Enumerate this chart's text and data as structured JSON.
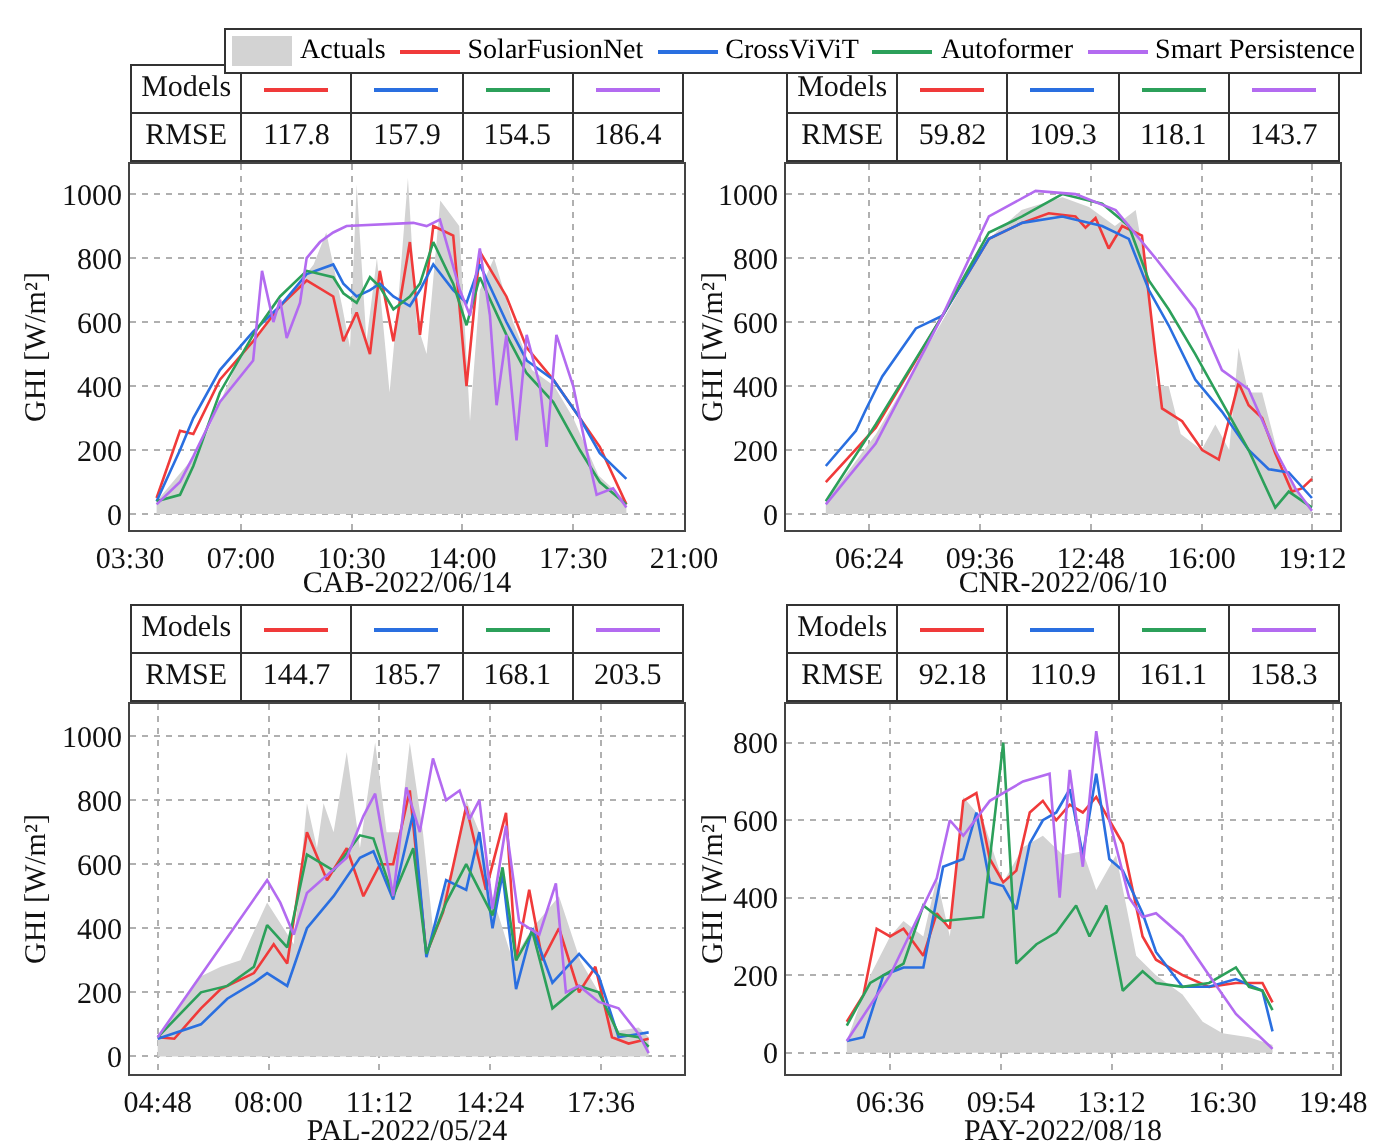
{
  "chart_data": [
    {
      "type": "line",
      "xlabel": "CAB-2022/06/14",
      "ylabel": "GHI [W/m²]",
      "xlim": [
        3.5,
        21
      ],
      "ylim": [
        -50,
        1094
      ],
      "xticks": [
        {
          "value": 3.5,
          "label": "03:30"
        },
        {
          "value": 7,
          "label": "07:00"
        },
        {
          "value": 10.5,
          "label": "10:30"
        },
        {
          "value": 14,
          "label": "14:00"
        },
        {
          "value": 17.5,
          "label": "17:30"
        },
        {
          "value": 21,
          "label": "21:00"
        }
      ],
      "yticks": [
        0,
        200,
        400,
        600,
        800,
        1000
      ],
      "grid": true,
      "legend": "top",
      "line_style": "solid",
      "annotations": [
        "Models",
        "RMSE",
        "117.8",
        "157.9",
        "154.5",
        "186.4"
      ],
      "series": [
        {
          "name": "Actuals",
          "type": "area",
          "color": "#d3d3d3",
          "x": [
            4.34,
            5.7,
            7.0,
            8.2,
            9.3,
            9.7,
            10.2,
            10.45,
            10.66,
            10.97,
            11.3,
            11.7,
            12.0,
            12.28,
            12.55,
            12.87,
            13.3,
            13.9,
            14.24,
            14.55,
            15.0,
            15.6,
            16.2,
            16.9,
            17.5,
            18.3,
            19.18
          ],
          "values": [
            40,
            200,
            500,
            640,
            780,
            880,
            650,
            520,
            1030,
            540,
            800,
            380,
            700,
            1050,
            600,
            500,
            980,
            900,
            290,
            700,
            800,
            600,
            450,
            400,
            300,
            120,
            40
          ]
        },
        {
          "name": "SolarFusionNet",
          "color": "#f03a3a",
          "x": [
            4.34,
            5.08,
            5.5,
            6.34,
            7.39,
            8.24,
            9.08,
            9.92,
            10.24,
            10.66,
            11.08,
            11.39,
            11.82,
            12.34,
            12.66,
            13.08,
            13.71,
            14.13,
            14.55,
            15.39,
            16.03,
            16.87,
            17.71,
            18.34,
            19.18
          ],
          "values": [
            50,
            260,
            250,
            420,
            540,
            650,
            730,
            680,
            540,
            630,
            500,
            760,
            540,
            850,
            560,
            900,
            870,
            400,
            820,
            680,
            520,
            420,
            300,
            210,
            30
          ]
        },
        {
          "name": "CrossViViT",
          "color": "#2a6fe0",
          "x": [
            4.34,
            5.08,
            5.5,
            6.34,
            7.39,
            8.24,
            9.08,
            9.92,
            10.24,
            10.66,
            11.08,
            11.39,
            11.82,
            12.34,
            12.66,
            13.08,
            13.71,
            14.13,
            14.55,
            15.39,
            16.03,
            16.87,
            17.71,
            18.34,
            19.18
          ],
          "values": [
            40,
            200,
            300,
            450,
            570,
            650,
            750,
            780,
            720,
            680,
            700,
            720,
            680,
            650,
            700,
            780,
            700,
            660,
            780,
            600,
            480,
            420,
            300,
            190,
            110
          ]
        },
        {
          "name": "Autoformer",
          "color": "#2ca05a",
          "x": [
            4.34,
            5.08,
            5.5,
            6.34,
            7.39,
            8.24,
            9.08,
            9.92,
            10.24,
            10.66,
            11.08,
            11.39,
            11.82,
            12.34,
            12.66,
            13.08,
            13.71,
            14.13,
            14.55,
            15.39,
            16.03,
            16.87,
            17.71,
            18.34,
            19.18
          ],
          "values": [
            40,
            60,
            150,
            380,
            560,
            680,
            760,
            740,
            690,
            660,
            740,
            710,
            640,
            680,
            720,
            850,
            720,
            590,
            740,
            560,
            440,
            350,
            200,
            100,
            30
          ]
        },
        {
          "name": "Smart Persistence",
          "color": "#b36bf0",
          "x": [
            4.34,
            5.08,
            5.5,
            6.34,
            7.39,
            7.67,
            8.03,
            8.24,
            8.45,
            8.87,
            9.08,
            9.5,
            9.92,
            10.34,
            12.45,
            12.87,
            13.29,
            13.92,
            14.24,
            14.55,
            14.87,
            15.08,
            15.39,
            15.71,
            16.03,
            16.45,
            16.66,
            16.97,
            17.5,
            17.92,
            18.24,
            18.76,
            19.18
          ],
          "values": [
            30,
            100,
            180,
            350,
            480,
            760,
            600,
            670,
            550,
            660,
            800,
            850,
            880,
            900,
            910,
            900,
            920,
            700,
            620,
            830,
            620,
            340,
            560,
            230,
            560,
            400,
            210,
            560,
            400,
            200,
            60,
            80,
            20
          ]
        }
      ]
    },
    {
      "type": "line",
      "xlabel": "CNR-2022/06/10",
      "ylabel": "GHI [W/m²]",
      "xlim": [
        4,
        20
      ],
      "ylim": [
        -50,
        1094
      ],
      "xticks": [
        {
          "value": 6.4,
          "label": "06:24"
        },
        {
          "value": 9.6,
          "label": "09:36"
        },
        {
          "value": 12.8,
          "label": "12:48"
        },
        {
          "value": 16,
          "label": "16:00"
        },
        {
          "value": 19.2,
          "label": "19:12"
        }
      ],
      "yticks": [
        0,
        200,
        400,
        600,
        800,
        1000
      ],
      "grid": true,
      "line_style": "solid",
      "annotations": [
        "Models",
        "RMSE",
        "59.82",
        "109.3",
        "118.1",
        "143.7"
      ],
      "series": [
        {
          "type": "area",
          "color": "#d3d3d3",
          "x": [
            5.15,
            6.6,
            8.5,
            9.86,
            10.8,
            11.98,
            12.75,
            13.5,
            14.1,
            14.5,
            14.7,
            15.05,
            15.4,
            16.0,
            16.4,
            16.8,
            17.07,
            17.35,
            17.75,
            18.3,
            18.7,
            19.19
          ],
          "values": [
            40,
            250,
            600,
            860,
            950,
            990,
            960,
            900,
            950,
            700,
            400,
            400,
            250,
            200,
            280,
            200,
            520,
            380,
            380,
            150,
            80,
            20
          ]
        },
        {
          "color": "#f03a3a",
          "x": [
            5.15,
            6.59,
            8.52,
            9.86,
            10.82,
            11.59,
            12.36,
            12.65,
            12.94,
            13.32,
            13.71,
            14.28,
            14.67,
            14.86,
            15.44,
            16.02,
            16.5,
            17.07,
            17.36,
            17.75,
            18.13,
            18.61,
            18.9,
            19.19
          ],
          "values": [
            100,
            270,
            620,
            860,
            910,
            940,
            930,
            895,
            925,
            830,
            900,
            870,
            500,
            330,
            290,
            200,
            170,
            410,
            340,
            300,
            190,
            70,
            80,
            110
          ]
        },
        {
          "color": "#2a6fe0",
          "x": [
            5.15,
            6.02,
            6.3,
            6.78,
            7.75,
            8.52,
            9.86,
            10.82,
            11.98,
            13.13,
            13.9,
            14.48,
            15.05,
            15.82,
            16.59,
            17.36,
            17.94,
            18.52,
            19.19
          ],
          "values": [
            150,
            260,
            325,
            430,
            580,
            620,
            860,
            910,
            930,
            900,
            860,
            700,
            590,
            420,
            320,
            200,
            140,
            130,
            50
          ]
        },
        {
          "color": "#2ca05a",
          "x": [
            5.15,
            6.59,
            8.52,
            9.86,
            10.82,
            11.98,
            13.13,
            13.9,
            14.48,
            15.05,
            15.82,
            16.59,
            17.36,
            18.13,
            18.52,
            19.19
          ],
          "values": [
            40,
            280,
            620,
            880,
            930,
            1000,
            970,
            900,
            730,
            640,
            500,
            350,
            200,
            20,
            70,
            20
          ]
        },
        {
          "color": "#b36bf0",
          "x": [
            5.15,
            6.59,
            8.52,
            9.86,
            11.21,
            12.36,
            13.52,
            14.67,
            15.82,
            16.59,
            17.36,
            18.13,
            18.71,
            19.19
          ],
          "values": [
            30,
            220,
            620,
            930,
            1010,
            1000,
            950,
            800,
            640,
            450,
            390,
            200,
            80,
            10
          ]
        }
      ]
    },
    {
      "type": "line",
      "xlabel": "PAL-2022/05/24",
      "ylabel": "GHI [W/m²]",
      "xlim": [
        4,
        20
      ],
      "ylim": [
        -55,
        1100
      ],
      "xticks": [
        {
          "value": 4.8,
          "label": "04:48"
        },
        {
          "value": 8,
          "label": "08:00"
        },
        {
          "value": 11.2,
          "label": "11:12"
        },
        {
          "value": 14.4,
          "label": "14:24"
        },
        {
          "value": 17.6,
          "label": "17:36"
        }
      ],
      "yticks": [
        0,
        200,
        400,
        600,
        800,
        1000
      ],
      "grid": true,
      "line_style": "solid",
      "annotations": [
        "Models",
        "RMSE",
        "144.7",
        "185.7",
        "168.1",
        "203.5"
      ],
      "series": [
        {
          "type": "area",
          "color": "#d3d3d3",
          "x": [
            4.8,
            6.05,
            6.62,
            7.19,
            7.96,
            8.73,
            9.11,
            9.4,
            9.59,
            9.88,
            10.26,
            10.64,
            11.08,
            11.41,
            11.79,
            12.08,
            12.46,
            12.75,
            13.33,
            13.71,
            14.09,
            14.47,
            15.05,
            15.62,
            16.39,
            17.0,
            17.54,
            18.11,
            18.69,
            18.98
          ],
          "values": [
            60,
            250,
            280,
            300,
            480,
            350,
            790,
            650,
            790,
            700,
            950,
            650,
            980,
            700,
            700,
            980,
            700,
            400,
            600,
            800,
            700,
            500,
            300,
            400,
            500,
            300,
            200,
            80,
            90,
            60
          ]
        },
        {
          "color": "#f03a3a",
          "x": [
            4.8,
            5.28,
            6.05,
            6.62,
            7.58,
            8.15,
            8.54,
            9.11,
            9.69,
            10.26,
            10.74,
            11.22,
            11.6,
            12.08,
            12.56,
            13.04,
            13.71,
            14.28,
            14.86,
            15.15,
            15.53,
            15.91,
            16.39,
            16.97,
            17.44,
            17.92,
            18.4,
            18.98
          ],
          "values": [
            60,
            55,
            150,
            210,
            260,
            350,
            290,
            700,
            550,
            650,
            500,
            600,
            600,
            830,
            320,
            450,
            780,
            520,
            760,
            300,
            520,
            300,
            400,
            200,
            280,
            60,
            40,
            55
          ]
        },
        {
          "color": "#2a6fe0",
          "x": [
            4.8,
            6.05,
            6.81,
            7.58,
            7.96,
            8.54,
            9.11,
            9.88,
            10.64,
            11.03,
            11.6,
            12.18,
            12.56,
            13.13,
            13.71,
            14.09,
            14.47,
            14.76,
            15.15,
            15.62,
            16.2,
            16.97,
            17.54,
            18.11,
            18.69,
            18.98
          ],
          "values": [
            55,
            100,
            180,
            230,
            260,
            220,
            400,
            500,
            620,
            640,
            490,
            760,
            310,
            550,
            520,
            700,
            400,
            570,
            210,
            400,
            230,
            320,
            250,
            60,
            70,
            75
          ]
        },
        {
          "color": "#2ca05a",
          "x": [
            4.8,
            6.05,
            6.81,
            7.58,
            7.96,
            8.54,
            9.11,
            9.88,
            10.64,
            11.03,
            11.6,
            12.18,
            12.56,
            13.13,
            13.71,
            14.09,
            14.47,
            14.76,
            15.15,
            15.62,
            16.2,
            16.97,
            17.54,
            18.11,
            18.69,
            18.98
          ],
          "values": [
            60,
            200,
            220,
            280,
            410,
            340,
            630,
            580,
            690,
            680,
            500,
            650,
            320,
            480,
            600,
            520,
            440,
            590,
            300,
            390,
            150,
            220,
            200,
            70,
            60,
            30
          ]
        },
        {
          "color": "#b36bf0",
          "x": [
            4.8,
            7.96,
            8.34,
            8.73,
            9.11,
            10.26,
            10.74,
            11.08,
            11.6,
            11.98,
            12.37,
            12.75,
            13.13,
            13.52,
            13.8,
            14.09,
            14.47,
            14.86,
            15.24,
            15.82,
            16.3,
            16.59,
            16.97,
            17.54,
            18.11,
            18.69,
            18.98
          ],
          "values": [
            60,
            550,
            480,
            380,
            510,
            620,
            750,
            820,
            500,
            840,
            700,
            930,
            800,
            830,
            740,
            800,
            460,
            720,
            420,
            380,
            540,
            200,
            220,
            170,
            150,
            70,
            10
          ]
        }
      ]
    },
    {
      "type": "line",
      "xlabel": "PAY-2022/08/18",
      "ylabel": "GHI [W/m²]",
      "xlim": [
        3.5,
        20
      ],
      "ylim": [
        -55,
        900
      ],
      "xticks": [
        {
          "value": 6.6,
          "label": "06:36"
        },
        {
          "value": 9.9,
          "label": "09:54"
        },
        {
          "value": 13.2,
          "label": "13:12"
        },
        {
          "value": 16.5,
          "label": "16:30"
        },
        {
          "value": 19.8,
          "label": "19:48"
        }
      ],
      "yticks": [
        0,
        200,
        400,
        600,
        800
      ],
      "grid": true,
      "line_style": "solid",
      "annotations": [
        "Models",
        "RMSE",
        "92.18",
        "110.9",
        "161.1",
        "158.3"
      ],
      "series": [
        {
          "type": "area",
          "color": "#d3d3d3",
          "x": [
            5.31,
            6.01,
            6.6,
            7.0,
            7.59,
            7.99,
            8.38,
            8.78,
            9.37,
            9.97,
            10.56,
            11.15,
            11.75,
            12.34,
            12.74,
            13.33,
            13.93,
            14.52,
            15.31,
            15.91,
            16.5,
            17.29,
            17.99
          ],
          "values": [
            30,
            200,
            300,
            340,
            300,
            450,
            300,
            660,
            600,
            440,
            530,
            560,
            510,
            520,
            420,
            510,
            250,
            200,
            150,
            80,
            50,
            40,
            20
          ]
        },
        {
          "color": "#f03a3a",
          "x": [
            5.31,
            5.81,
            6.2,
            6.6,
            7.0,
            7.59,
            7.99,
            8.38,
            8.78,
            9.17,
            9.57,
            9.97,
            10.36,
            10.76,
            11.15,
            11.55,
            11.95,
            12.34,
            12.74,
            13.13,
            13.53,
            14.12,
            14.52,
            15.31,
            16.1,
            16.9,
            17.69,
            17.99
          ],
          "values": [
            80,
            150,
            320,
            300,
            320,
            250,
            360,
            320,
            650,
            670,
            500,
            440,
            470,
            620,
            650,
            600,
            640,
            620,
            660,
            600,
            540,
            300,
            240,
            200,
            170,
            180,
            180,
            130
          ]
        },
        {
          "color": "#2a6fe0",
          "x": [
            5.31,
            5.81,
            6.4,
            7.0,
            7.59,
            8.18,
            8.78,
            9.17,
            9.57,
            9.97,
            10.36,
            10.76,
            11.15,
            11.55,
            11.95,
            12.34,
            12.74,
            13.13,
            13.53,
            14.12,
            14.52,
            15.31,
            16.1,
            16.9,
            17.69,
            17.99
          ],
          "values": [
            30,
            40,
            200,
            220,
            220,
            480,
            500,
            620,
            440,
            430,
            370,
            540,
            600,
            620,
            680,
            510,
            720,
            500,
            470,
            360,
            260,
            170,
            170,
            190,
            160,
            55
          ]
        },
        {
          "color": "#2ca05a",
          "x": [
            5.31,
            6.01,
            7.0,
            7.59,
            8.18,
            9.37,
            9.97,
            10.36,
            10.96,
            11.55,
            12.14,
            12.54,
            13.04,
            13.53,
            14.12,
            14.52,
            15.31,
            16.1,
            16.9,
            17.29,
            17.69,
            17.99
          ],
          "values": [
            70,
            180,
            230,
            380,
            340,
            350,
            800,
            230,
            280,
            310,
            380,
            300,
            380,
            160,
            210,
            180,
            170,
            180,
            220,
            170,
            160,
            110
          ]
        },
        {
          "color": "#b36bf0",
          "x": [
            5.31,
            6.6,
            7.99,
            8.38,
            8.78,
            9.57,
            10.56,
            11.35,
            11.65,
            11.95,
            12.34,
            12.74,
            13.13,
            13.72,
            14.12,
            14.52,
            15.31,
            16.1,
            16.9,
            17.99
          ],
          "values": [
            30,
            200,
            450,
            600,
            560,
            650,
            700,
            720,
            400,
            730,
            480,
            830,
            600,
            400,
            350,
            360,
            300,
            200,
            100,
            10
          ]
        }
      ]
    }
  ]
}
